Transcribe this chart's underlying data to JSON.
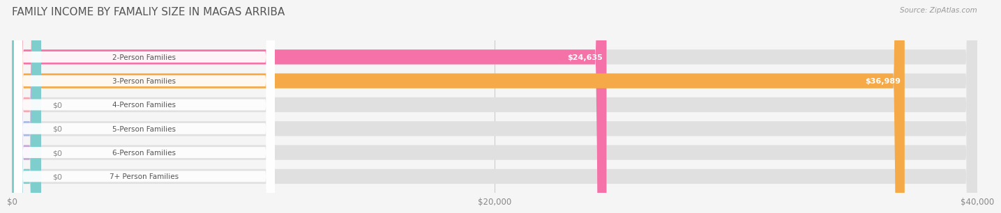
{
  "title": "FAMILY INCOME BY FAMALIY SIZE IN MAGAS ARRIBA",
  "source": "Source: ZipAtlas.com",
  "categories": [
    "2-Person Families",
    "3-Person Families",
    "4-Person Families",
    "5-Person Families",
    "6-Person Families",
    "7+ Person Families"
  ],
  "values": [
    24635,
    36989,
    0,
    0,
    0,
    0
  ],
  "bar_colors": [
    "#f472a8",
    "#f5a947",
    "#f4a8b0",
    "#a8b8e8",
    "#c4a8d8",
    "#7ecece"
  ],
  "value_labels": [
    "$24,635",
    "$36,989",
    "$0",
    "$0",
    "$0",
    "$0"
  ],
  "xlim": [
    0,
    40000
  ],
  "xticks": [
    0,
    20000,
    40000
  ],
  "xtick_labels": [
    "$0",
    "$20,000",
    "$40,000"
  ],
  "background_color": "#f5f5f5",
  "title_fontsize": 11,
  "bar_height": 0.62,
  "figsize": [
    14.06,
    3.05
  ]
}
